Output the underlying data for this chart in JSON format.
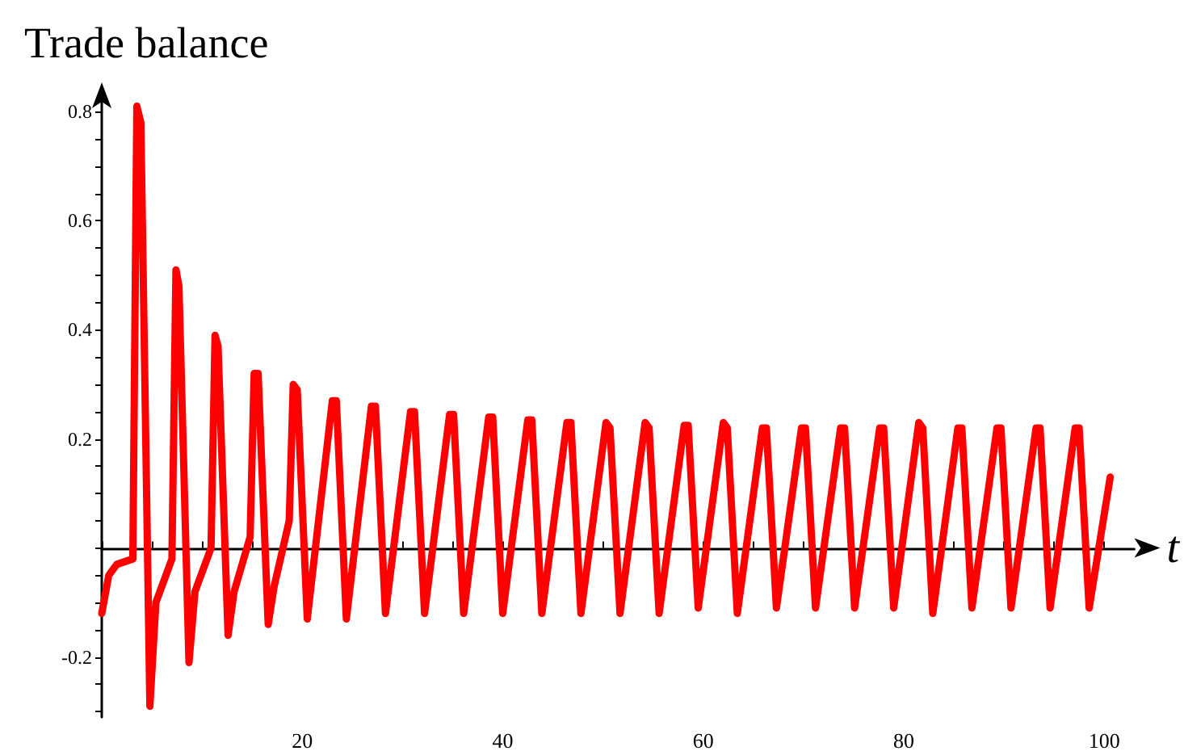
{
  "chart_data": {
    "type": "line",
    "title": "Trade balance",
    "xlabel": "t",
    "x": [
      0,
      0.7,
      1.5,
      3.1,
      3.5,
      3.9,
      4.8,
      5.4,
      7.0,
      7.4,
      7.7,
      8.7,
      9.3,
      10.9,
      11.3,
      11.6,
      12.6,
      13.2,
      14.8,
      15.2,
      15.6,
      16.6,
      17.2,
      18.7,
      19.1,
      19.5,
      20.5,
      23.0,
      23.4,
      24.4,
      26.9,
      27.3,
      28.3,
      30.8,
      31.2,
      32.2,
      34.7,
      35.1,
      36.1,
      38.6,
      39.0,
      40.0,
      42.5,
      42.9,
      43.9,
      46.4,
      46.8,
      47.8,
      50.3,
      50.7,
      51.7,
      54.2,
      54.6,
      55.6,
      58.1,
      58.5,
      59.5,
      62.0,
      62.4,
      63.4,
      65.9,
      66.3,
      67.3,
      69.8,
      70.2,
      71.2,
      73.7,
      74.1,
      75.1,
      77.6,
      78.0,
      79.0,
      81.5,
      81.9,
      82.9,
      85.4,
      85.8,
      86.8,
      89.3,
      89.7,
      90.7,
      93.2,
      93.6,
      94.6,
      97.1,
      97.5,
      98.5,
      100.6
    ],
    "series": [
      {
        "color": "#ff0000",
        "values": [
          -0.12,
          -0.05,
          -0.03,
          -0.02,
          0.81,
          0.78,
          -0.29,
          -0.1,
          -0.02,
          0.51,
          0.48,
          -0.21,
          -0.08,
          0.0,
          0.39,
          0.37,
          -0.16,
          -0.08,
          0.02,
          0.32,
          0.32,
          -0.14,
          -0.07,
          0.05,
          0.3,
          0.29,
          -0.13,
          0.27,
          0.27,
          -0.13,
          0.26,
          0.26,
          -0.12,
          0.25,
          0.25,
          -0.12,
          0.245,
          0.245,
          -0.12,
          0.24,
          0.24,
          -0.12,
          0.235,
          0.235,
          -0.12,
          0.23,
          0.23,
          -0.12,
          0.23,
          0.22,
          -0.12,
          0.23,
          0.22,
          -0.12,
          0.225,
          0.225,
          -0.11,
          0.23,
          0.22,
          -0.12,
          0.22,
          0.22,
          -0.11,
          0.22,
          0.22,
          -0.11,
          0.22,
          0.22,
          -0.11,
          0.22,
          0.22,
          -0.11,
          0.23,
          0.22,
          -0.12,
          0.22,
          0.22,
          -0.11,
          0.22,
          0.22,
          -0.11,
          0.22,
          0.22,
          -0.11,
          0.22,
          0.22,
          -0.11,
          0.13
        ]
      }
    ],
    "xlim": [
      0,
      103
    ],
    "xticks": [
      {
        "value": 0,
        "label": null
      },
      {
        "value": 5,
        "label": null
      },
      {
        "value": 10,
        "label": null
      },
      {
        "value": 15,
        "label": null
      },
      20,
      {
        "value": 25,
        "label": null
      },
      {
        "value": 30,
        "label": null
      },
      {
        "value": 35,
        "label": null
      },
      40,
      {
        "value": 45,
        "label": null
      },
      {
        "value": 50,
        "label": null
      },
      {
        "value": 55,
        "label": null
      },
      60,
      {
        "value": 65,
        "label": null
      },
      {
        "value": 70,
        "label": null
      },
      {
        "value": 75,
        "label": null
      },
      80,
      {
        "value": 85,
        "label": null
      },
      {
        "value": 90,
        "label": null
      },
      {
        "value": 95,
        "label": null
      },
      100
    ],
    "ylim": [
      -0.31,
      0.83
    ],
    "yticks": [
      {
        "value": -0.3,
        "label": null
      },
      {
        "value": -0.25,
        "label": null
      },
      -0.2,
      {
        "value": -0.15,
        "label": null
      },
      {
        "value": -0.1,
        "label": null
      },
      {
        "value": -0.05,
        "label": null
      },
      {
        "value": 0,
        "label": null
      },
      {
        "value": 0.05,
        "label": null
      },
      {
        "value": 0.1,
        "label": null
      },
      {
        "value": 0.15,
        "label": null
      },
      0.2,
      {
        "value": 0.25,
        "label": null
      },
      {
        "value": 0.3,
        "label": null
      },
      {
        "value": 0.35,
        "label": null
      },
      0.4,
      {
        "value": 0.45,
        "label": null
      },
      {
        "value": 0.5,
        "label": null
      },
      {
        "value": 0.55,
        "label": null
      },
      0.6,
      {
        "value": 0.65,
        "label": null
      },
      {
        "value": 0.7,
        "label": null
      },
      {
        "value": 0.75,
        "label": null
      },
      0.8
    ],
    "marker": "none",
    "line_style": "solid"
  }
}
